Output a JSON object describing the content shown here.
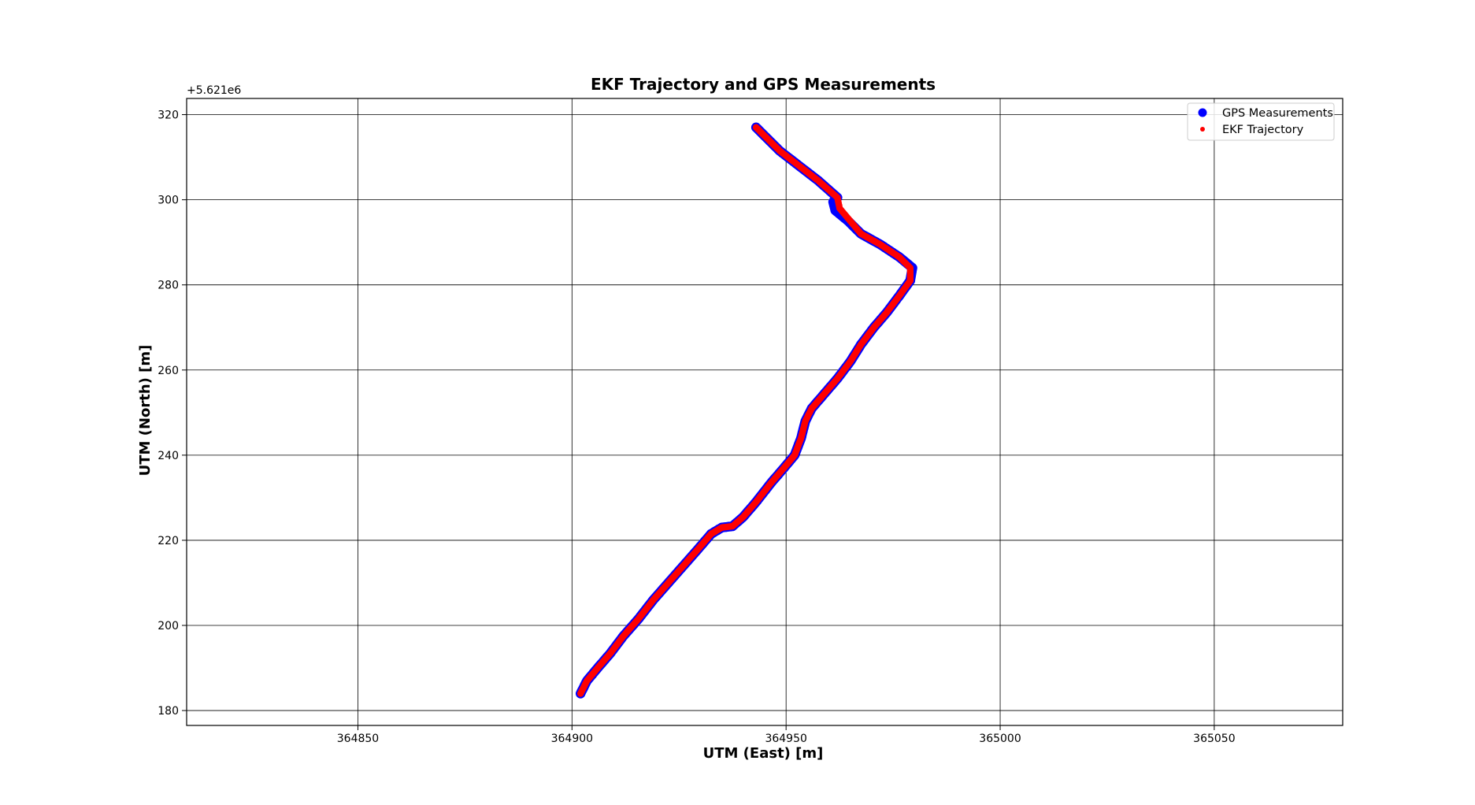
{
  "chart_data": {
    "type": "scatter",
    "title": "EKF Trajectory and GPS Measurements",
    "xlabel": "UTM (East) [m]",
    "ylabel": "UTM (North) [m]",
    "y_offset_label": "+5.621e6",
    "xlim": [
      364810,
      365080
    ],
    "ylim": [
      176.5,
      323.8
    ],
    "xticks": [
      364850,
      364900,
      364950,
      365000,
      365050
    ],
    "xtick_labels": [
      "364850",
      "364900",
      "364950",
      "365000",
      "365050"
    ],
    "yticks": [
      180,
      200,
      220,
      240,
      260,
      280,
      300,
      320
    ],
    "ytick_labels": [
      "180",
      "200",
      "220",
      "240",
      "260",
      "280",
      "300",
      "320"
    ],
    "grid": true,
    "legend_position": "top-right",
    "series": [
      {
        "name": "GPS Measurements",
        "color": "#0000ff",
        "marker": "circle-large",
        "points": [
          [
            364902.0,
            184.0
          ],
          [
            364903.5,
            187.0
          ],
          [
            364906.0,
            190.0
          ],
          [
            364909.0,
            193.5
          ],
          [
            364912.0,
            197.5
          ],
          [
            364915.5,
            201.5
          ],
          [
            364919.0,
            206.0
          ],
          [
            364922.5,
            210.0
          ],
          [
            364926.0,
            214.0
          ],
          [
            364929.5,
            218.0
          ],
          [
            364932.5,
            221.5
          ],
          [
            364935.0,
            223.0
          ],
          [
            364937.5,
            223.3
          ],
          [
            364940.0,
            225.5
          ],
          [
            364943.0,
            229.0
          ],
          [
            364946.5,
            233.5
          ],
          [
            364949.5,
            237.0
          ],
          [
            364952.0,
            240.0
          ],
          [
            364953.5,
            244.0
          ],
          [
            364954.5,
            248.0
          ],
          [
            364956.0,
            251.0
          ],
          [
            364959.0,
            254.5
          ],
          [
            364962.0,
            258.0
          ],
          [
            364965.0,
            262.0
          ],
          [
            364967.5,
            266.0
          ],
          [
            364970.5,
            270.0
          ],
          [
            364973.5,
            273.5
          ],
          [
            364976.5,
            277.5
          ],
          [
            364979.0,
            281.0
          ],
          [
            364979.5,
            284.0
          ],
          [
            364976.5,
            286.5
          ],
          [
            364972.0,
            289.5
          ],
          [
            364967.5,
            292.0
          ],
          [
            364964.5,
            295.0
          ],
          [
            364961.5,
            297.5
          ],
          [
            364961.0,
            299.5
          ],
          [
            364962.0,
            300.5
          ],
          [
            364957.5,
            304.5
          ],
          [
            364953.0,
            308.0
          ],
          [
            364948.5,
            311.5
          ],
          [
            364945.0,
            315.0
          ],
          [
            364943.0,
            317.0
          ]
        ]
      },
      {
        "name": "EKF Trajectory",
        "color": "#ff0000",
        "marker": "circle-small",
        "points": [
          [
            364902.0,
            184.0
          ],
          [
            364903.5,
            187.0
          ],
          [
            364906.0,
            190.0
          ],
          [
            364909.0,
            193.5
          ],
          [
            364912.0,
            197.5
          ],
          [
            364915.5,
            201.5
          ],
          [
            364919.0,
            206.0
          ],
          [
            364922.5,
            210.0
          ],
          [
            364926.0,
            214.0
          ],
          [
            364929.5,
            218.0
          ],
          [
            364932.5,
            221.5
          ],
          [
            364935.0,
            223.0
          ],
          [
            364937.5,
            223.3
          ],
          [
            364940.0,
            225.5
          ],
          [
            364943.0,
            229.0
          ],
          [
            364946.5,
            233.5
          ],
          [
            364949.5,
            237.0
          ],
          [
            364952.0,
            240.0
          ],
          [
            364953.5,
            244.0
          ],
          [
            364954.5,
            248.0
          ],
          [
            364956.0,
            251.0
          ],
          [
            364959.0,
            254.5
          ],
          [
            364962.0,
            258.0
          ],
          [
            364965.0,
            262.0
          ],
          [
            364967.5,
            266.0
          ],
          [
            364970.5,
            270.0
          ],
          [
            364973.5,
            273.5
          ],
          [
            364976.5,
            277.5
          ],
          [
            364979.0,
            281.0
          ],
          [
            364979.0,
            284.0
          ],
          [
            364976.5,
            286.5
          ],
          [
            364972.0,
            289.5
          ],
          [
            364967.5,
            292.0
          ],
          [
            364965.0,
            295.0
          ],
          [
            364962.5,
            298.0
          ],
          [
            364962.0,
            300.5
          ],
          [
            364957.5,
            304.5
          ],
          [
            364953.0,
            308.0
          ],
          [
            364948.5,
            311.5
          ],
          [
            364945.0,
            315.0
          ],
          [
            364943.0,
            317.0
          ]
        ]
      }
    ]
  }
}
